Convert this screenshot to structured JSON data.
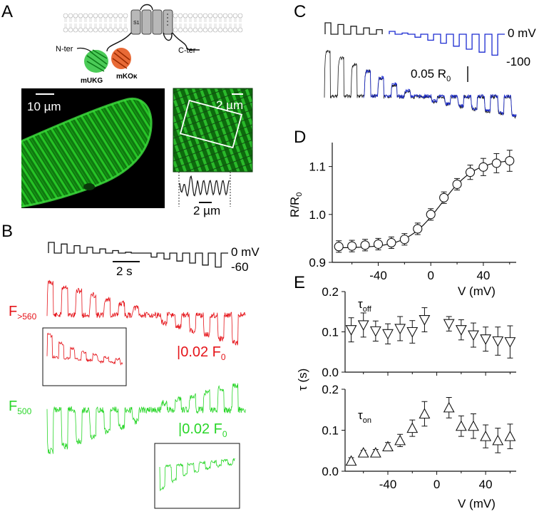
{
  "panels": {
    "A": {
      "letter": "A",
      "schematic": {
        "n_ter": "N-ter",
        "c_ter": "C-ter",
        "s1": "S1",
        "green_fp": "mUKG",
        "red_fp": "mKOκ"
      },
      "scalebar_cell": "10 µm",
      "scalebar_inset_top": "2 µm",
      "scalebar_inset_bottom": "2 µm"
    },
    "B": {
      "letter": "B",
      "protocol": {
        "v_top": "0 mV",
        "v_bottom": "-60",
        "time_scale": "2 s"
      },
      "red_trace": {
        "label": "F",
        "label_sub": ">560",
        "scale": "|0.02 F",
        "scale_sub": "0",
        "color": "#e5141a"
      },
      "green_trace": {
        "label": "F",
        "label_sub": "500",
        "scale": "|0.02 F",
        "scale_sub": "0",
        "color": "#29d629"
      }
    },
    "C": {
      "letter": "C",
      "protocol": {
        "v_top": "0 mV",
        "v_bottom": "-100"
      },
      "scale": "0.05 R",
      "scale_sub": "0",
      "colors": {
        "black": "#1a1a1a",
        "blue": "#1b2bd1"
      }
    },
    "D": {
      "letter": "D",
      "ylabel_main": "R/R",
      "ylabel_sub": "0",
      "xlabel": "V (mV)"
    },
    "E": {
      "letter": "E",
      "ylabel": "τ (s)",
      "xlabel": "V (mV)",
      "top_label": "τ",
      "top_label_sub": "off",
      "bottom_label": "τ",
      "bottom_label_sub": "on"
    }
  },
  "chart_data": [
    {
      "type": "scatter",
      "panel": "D",
      "xlabel": "V (mV)",
      "ylabel": "R/R0",
      "xlim": [
        -75,
        65
      ],
      "ylim": [
        0.9,
        1.15
      ],
      "xticks": [
        -40,
        0,
        40
      ],
      "yticks": [
        0.9,
        1.0,
        1.1
      ],
      "ytick_labels": [
        "0.9",
        "1.0",
        "1.1"
      ],
      "x": [
        -70,
        -60,
        -50,
        -40,
        -30,
        -20,
        -10,
        0,
        10,
        20,
        30,
        40,
        50,
        60
      ],
      "y": [
        0.933,
        0.934,
        0.936,
        0.938,
        0.941,
        0.948,
        0.97,
        1.0,
        1.035,
        1.063,
        1.088,
        1.099,
        1.107,
        1.112
      ],
      "err": [
        0.012,
        0.012,
        0.012,
        0.012,
        0.012,
        0.012,
        0.012,
        0.012,
        0.012,
        0.012,
        0.015,
        0.018,
        0.02,
        0.022
      ],
      "fit": "boltzmann"
    },
    {
      "type": "scatter",
      "panel": "E-top",
      "label": "τoff",
      "ylabel": "τ (s)",
      "xlim": [
        -75,
        65
      ],
      "ylim": [
        0.0,
        0.2
      ],
      "yticks": [
        0.0,
        0.1,
        0.2
      ],
      "ytick_labels": [
        "0.0",
        "0.1",
        "0.2"
      ],
      "x": [
        -70,
        -60,
        -50,
        -40,
        -30,
        -20,
        -10,
        10,
        20,
        30,
        40,
        50,
        60
      ],
      "y": [
        0.105,
        0.117,
        0.102,
        0.095,
        0.108,
        0.1,
        0.13,
        0.12,
        0.105,
        0.092,
        0.082,
        0.077,
        0.075
      ],
      "err": [
        0.03,
        0.03,
        0.025,
        0.025,
        0.03,
        0.028,
        0.03,
        0.018,
        0.025,
        0.03,
        0.03,
        0.035,
        0.04
      ]
    },
    {
      "type": "scatter",
      "panel": "E-bottom",
      "label": "τon",
      "xlabel": "V (mV)",
      "xlim": [
        -75,
        65
      ],
      "ylim": [
        0.0,
        0.2
      ],
      "xticks": [
        -40,
        0,
        40
      ],
      "yticks": [
        0.0,
        0.1,
        0.2
      ],
      "ytick_labels": [
        "0.0",
        "0.1",
        "0.2"
      ],
      "x": [
        -70,
        -60,
        -50,
        -40,
        -30,
        -20,
        -10,
        10,
        20,
        30,
        40,
        50,
        60
      ],
      "y": [
        0.025,
        0.045,
        0.045,
        0.06,
        0.075,
        0.105,
        0.14,
        0.155,
        0.11,
        0.11,
        0.085,
        0.075,
        0.085
      ],
      "err": [
        0.008,
        0.006,
        0.008,
        0.01,
        0.015,
        0.02,
        0.03,
        0.025,
        0.025,
        0.03,
        0.028,
        0.03,
        0.03
      ]
    }
  ]
}
